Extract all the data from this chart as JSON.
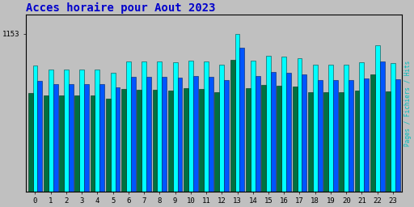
{
  "title": "Acces horaire pour Aout 2023",
  "ylabel_right": "Pages / Fichiers / Hits",
  "categories": [
    0,
    1,
    2,
    3,
    4,
    5,
    6,
    7,
    8,
    9,
    10,
    11,
    12,
    13,
    14,
    15,
    16,
    17,
    18,
    19,
    20,
    21,
    22,
    23
  ],
  "hits": [
    920,
    890,
    892,
    892,
    892,
    865,
    952,
    948,
    948,
    943,
    958,
    952,
    928,
    1153,
    958,
    988,
    983,
    972,
    928,
    928,
    928,
    943,
    1068,
    938
  ],
  "fichiers": [
    810,
    782,
    785,
    785,
    784,
    760,
    838,
    835,
    835,
    828,
    842,
    837,
    814,
    1048,
    842,
    870,
    865,
    855,
    814,
    814,
    814,
    826,
    950,
    818
  ],
  "pages": [
    720,
    698,
    700,
    700,
    699,
    678,
    748,
    745,
    745,
    739,
    752,
    747,
    726,
    962,
    752,
    778,
    773,
    763,
    725,
    725,
    725,
    737,
    855,
    729
  ],
  "ytick_label": "1153",
  "ytick_value": 1153,
  "background_color": "#c0c0c0",
  "plot_bg_color": "#c0c0c0",
  "bar_color_hits": "#00ffff",
  "bar_color_fichiers": "#0055ff",
  "bar_color_pages": "#007040",
  "title_color": "#0000cc",
  "title_fontsize": 10,
  "ylabel_color": "#00bbbb",
  "group_width": 0.92
}
